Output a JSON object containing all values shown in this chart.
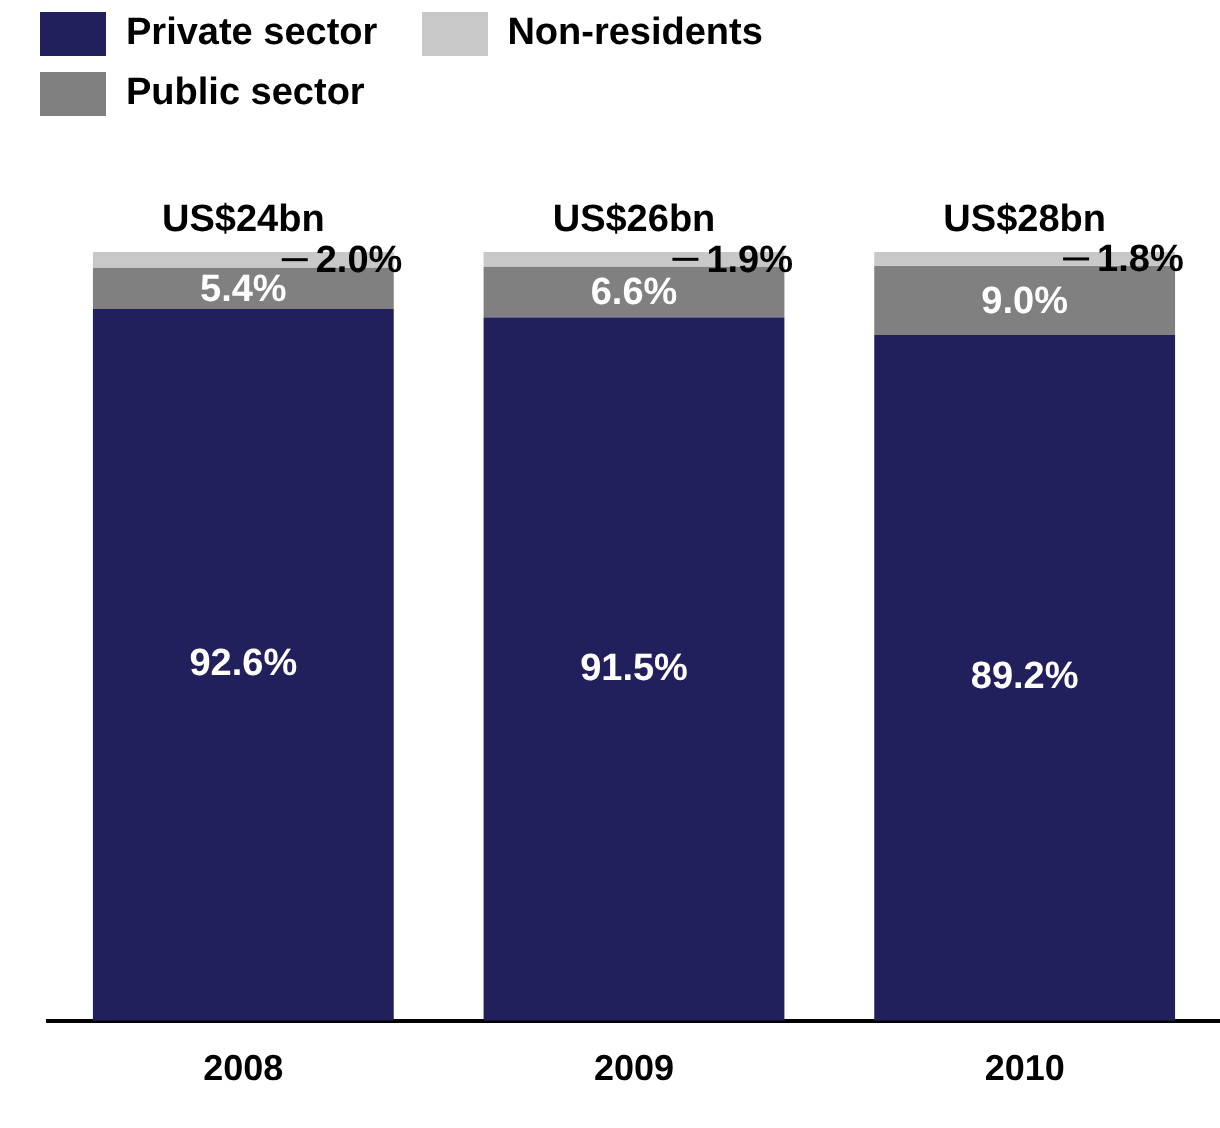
{
  "chart_data": {
    "type": "bar",
    "stacked": true,
    "categories": [
      "2008",
      "2009",
      "2010"
    ],
    "series": [
      {
        "name": "Private sector",
        "color": "#22205c",
        "values": [
          92.6,
          91.5,
          89.2
        ],
        "value_labels": [
          "92.6%",
          "91.5%",
          "89.2%"
        ]
      },
      {
        "name": "Public sector",
        "color": "#808080",
        "values": [
          5.4,
          6.6,
          9.0
        ],
        "value_labels": [
          "5.4%",
          "6.6%",
          "9.0%"
        ]
      },
      {
        "name": "Non-residents",
        "color": "#c8c8c8",
        "values": [
          2.0,
          1.9,
          1.8
        ],
        "value_labels": [
          "2.0%",
          "1.9%",
          "1.8%"
        ]
      }
    ],
    "totals": [
      "US$24bn",
      "US$26bn",
      "US$28bn"
    ],
    "ylim": [
      0,
      100
    ],
    "tick_labels": "x",
    "grid": false,
    "legend": "top left"
  }
}
